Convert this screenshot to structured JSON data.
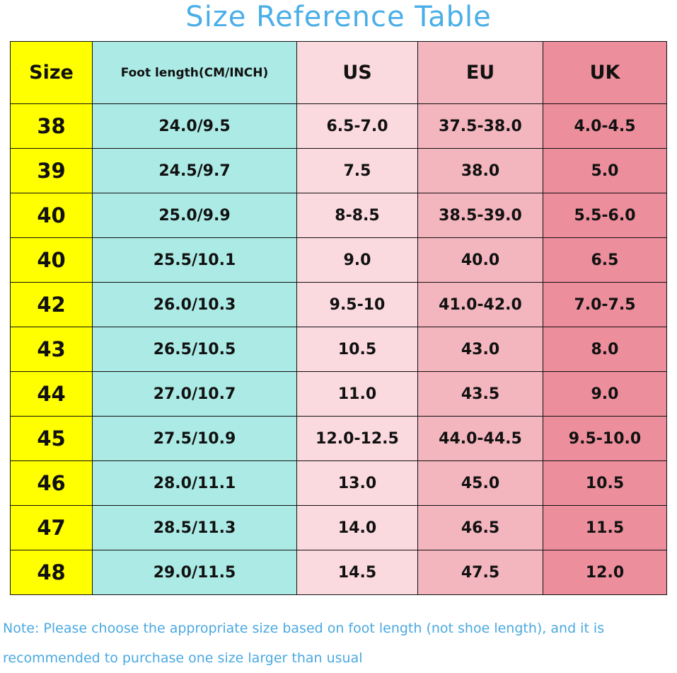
{
  "title": "Size Reference Table",
  "colors": {
    "title": "#4aaee8",
    "size_col": "#ffff00",
    "foot_col": "#abeae5",
    "us_col": "#fad9df",
    "eu_col": "#f3b5be",
    "uk_col": "#ec8e9b"
  },
  "table": {
    "headers": [
      "Size",
      "Foot length(CM/INCH)",
      "US",
      "EU",
      "UK"
    ],
    "rows": [
      [
        "38",
        "24.0/9.5",
        "6.5-7.0",
        "37.5-38.0",
        "4.0-4.5"
      ],
      [
        "39",
        "24.5/9.7",
        "7.5",
        "38.0",
        "5.0"
      ],
      [
        "40",
        "25.0/9.9",
        "8-8.5",
        "38.5-39.0",
        "5.5-6.0"
      ],
      [
        "40",
        "25.5/10.1",
        "9.0",
        "40.0",
        "6.5"
      ],
      [
        "42",
        "26.0/10.3",
        "9.5-10",
        "41.0-42.0",
        "7.0-7.5"
      ],
      [
        "43",
        "26.5/10.5",
        "10.5",
        "43.0",
        "8.0"
      ],
      [
        "44",
        "27.0/10.7",
        "11.0",
        "43.5",
        "9.0"
      ],
      [
        "45",
        "27.5/10.9",
        "12.0-12.5",
        "44.0-44.5",
        "9.5-10.0"
      ],
      [
        "46",
        "28.0/11.1",
        "13.0",
        "45.0",
        "10.5"
      ],
      [
        "47",
        "28.5/11.3",
        "14.0",
        "46.5",
        "11.5"
      ],
      [
        "48",
        "29.0/11.5",
        "14.5",
        "47.5",
        "12.0"
      ]
    ]
  },
  "note": "Note: Please choose the appropriate size based on foot length (not shoe length), and it is recommended to purchase one size larger than usual"
}
